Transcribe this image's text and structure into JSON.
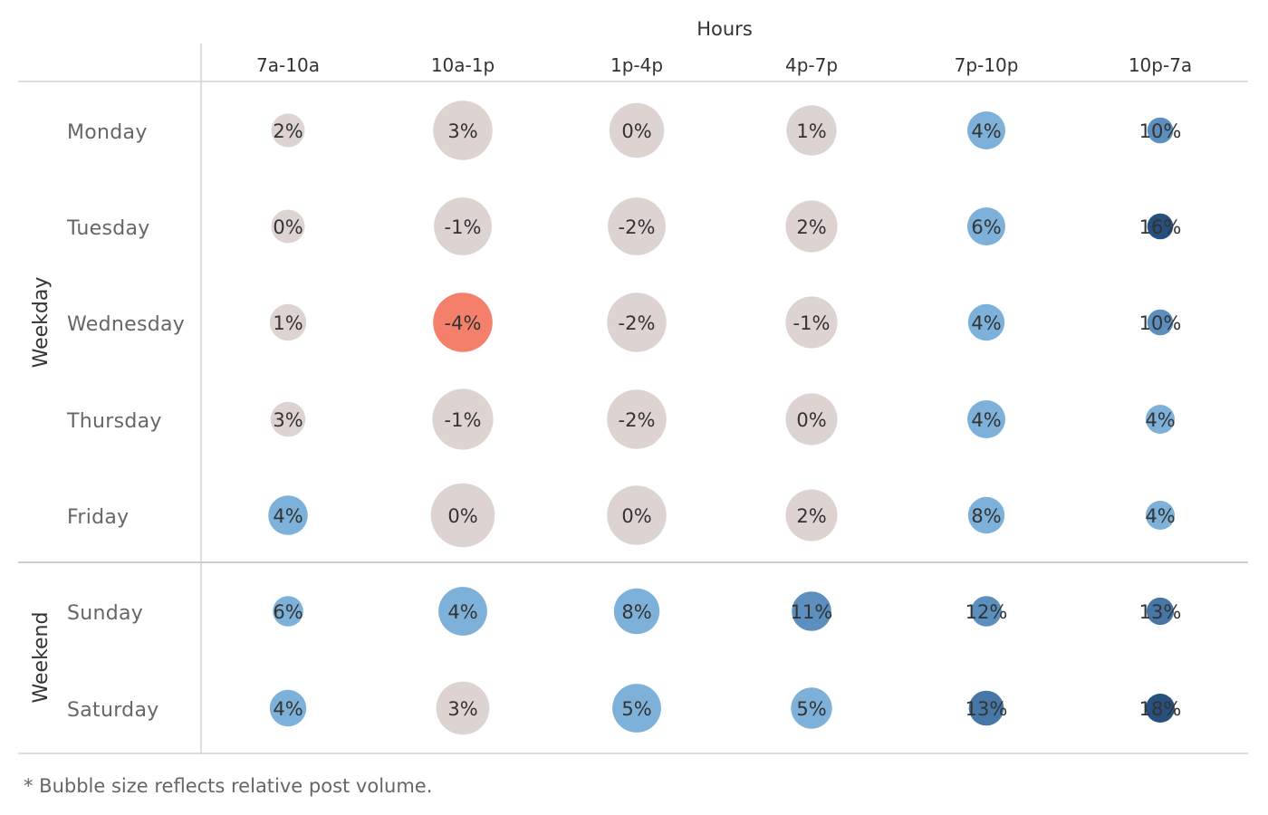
{
  "chart_data": {
    "type": "bubble-matrix",
    "title": "",
    "column_header": "Hours",
    "columns": [
      "7a-10a",
      "10a-1p",
      "1p-4p",
      "4p-7p",
      "7p-10p",
      "10p-7a"
    ],
    "groups": [
      {
        "name": "Weekday",
        "rows": [
          "Monday",
          "Tuesday",
          "Wednesday",
          "Thursday",
          "Friday"
        ]
      },
      {
        "name": "Weekend",
        "rows": [
          "Sunday",
          "Saturday"
        ]
      }
    ],
    "rows": [
      "Monday",
      "Tuesday",
      "Wednesday",
      "Thursday",
      "Friday",
      "Sunday",
      "Saturday"
    ],
    "values": [
      [
        2,
        3,
        0,
        1,
        4,
        10
      ],
      [
        0,
        -1,
        -2,
        2,
        6,
        16
      ],
      [
        1,
        -4,
        -2,
        -1,
        4,
        10
      ],
      [
        3,
        -1,
        -2,
        0,
        4,
        4
      ],
      [
        4,
        0,
        0,
        2,
        8,
        4
      ],
      [
        6,
        4,
        8,
        11,
        12,
        13
      ],
      [
        4,
        3,
        5,
        5,
        13,
        18
      ]
    ],
    "labels": [
      [
        "2%",
        "3%",
        "0%",
        "1%",
        "4%",
        "10%"
      ],
      [
        "0%",
        "-1%",
        "-2%",
        "2%",
        "6%",
        "16%"
      ],
      [
        "1%",
        "-4%",
        "-2%",
        "-1%",
        "4%",
        "10%"
      ],
      [
        "3%",
        "-1%",
        "-2%",
        "0%",
        "4%",
        "4%"
      ],
      [
        "4%",
        "0%",
        "0%",
        "2%",
        "8%",
        "4%"
      ],
      [
        "6%",
        "4%",
        "8%",
        "11%",
        "12%",
        "13%"
      ],
      [
        "4%",
        "3%",
        "5%",
        "5%",
        "13%",
        "18%"
      ]
    ],
    "relative_volume": [
      [
        0.44,
        0.78,
        0.72,
        0.66,
        0.5,
        0.34
      ],
      [
        0.44,
        0.76,
        0.76,
        0.68,
        0.5,
        0.34
      ],
      [
        0.48,
        0.78,
        0.78,
        0.68,
        0.48,
        0.34
      ],
      [
        0.46,
        0.8,
        0.78,
        0.68,
        0.5,
        0.38
      ],
      [
        0.52,
        0.84,
        0.78,
        0.68,
        0.48,
        0.38
      ],
      [
        0.4,
        0.64,
        0.6,
        0.52,
        0.4,
        0.36
      ],
      [
        0.48,
        0.7,
        0.64,
        0.54,
        0.46,
        0.38
      ]
    ],
    "colors": {
      "neutral": "#ddd4d2",
      "negative_strong": "#f4806c",
      "blue_light": "#7eb1d9",
      "blue_mid": "#5c8fbd",
      "blue_dark": "#4777a7",
      "blue_darkest": "#28507f"
    },
    "footnote": "* Bubble size reflects relative post volume."
  }
}
